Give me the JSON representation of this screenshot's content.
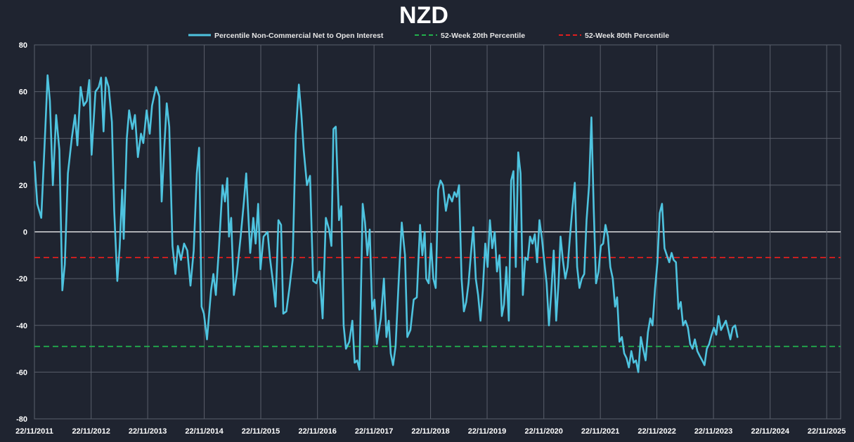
{
  "chart_data": {
    "type": "line",
    "title": "NZD",
    "xlabel": "",
    "ylabel": "",
    "ylim": [
      -80,
      80
    ],
    "yticks": [
      80,
      60,
      40,
      20,
      0,
      -20,
      -40,
      -60,
      -80
    ],
    "xticks": [
      "22/11/2011",
      "22/11/2012",
      "22/11/2013",
      "22/11/2014",
      "22/11/2015",
      "22/11/2016",
      "22/11/2017",
      "22/11/2018",
      "22/11/2019",
      "22/11/2020",
      "22/11/2021",
      "22/11/2022",
      "22/11/2023",
      "22/11/2024",
      "22/11/2025"
    ],
    "xlim": [
      "2011-11-22",
      "2026-02-20"
    ],
    "grid": true,
    "legend_position": "top",
    "colors": {
      "main": "#4ec3df",
      "p20": "#22b14c",
      "p80": "#e01e1e",
      "background": "#1f2430",
      "grid": "#5a5f6b",
      "zero": "#ffffff"
    },
    "series": [
      {
        "name": "Percentile Non-Commercial Net to Open Interest",
        "style": "solid",
        "points": [
          [
            "2011-11-22",
            30
          ],
          [
            "2011-12-10",
            12
          ],
          [
            "2012-01-05",
            6
          ],
          [
            "2012-02-01",
            45
          ],
          [
            "2012-02-15",
            67
          ],
          [
            "2012-03-01",
            56
          ],
          [
            "2012-03-20",
            20
          ],
          [
            "2012-04-10",
            50
          ],
          [
            "2012-05-01",
            35
          ],
          [
            "2012-05-20",
            -25
          ],
          [
            "2012-06-05",
            -14
          ],
          [
            "2012-06-25",
            25
          ],
          [
            "2012-07-20",
            40
          ],
          [
            "2012-08-10",
            50
          ],
          [
            "2012-08-25",
            37
          ],
          [
            "2012-09-15",
            62
          ],
          [
            "2012-10-05",
            54
          ],
          [
            "2012-10-25",
            56
          ],
          [
            "2012-11-10",
            65
          ],
          [
            "2012-11-25",
            33
          ],
          [
            "2012-12-20",
            60
          ],
          [
            "2013-01-10",
            62
          ],
          [
            "2013-01-25",
            66
          ],
          [
            "2013-02-10",
            43
          ],
          [
            "2013-02-25",
            66
          ],
          [
            "2013-03-15",
            62
          ],
          [
            "2013-04-05",
            47
          ],
          [
            "2013-04-20",
            9
          ],
          [
            "2013-05-10",
            -21
          ],
          [
            "2013-05-25",
            -7
          ],
          [
            "2013-06-10",
            18
          ],
          [
            "2013-06-20",
            -3
          ],
          [
            "2013-07-10",
            40
          ],
          [
            "2013-07-25",
            52
          ],
          [
            "2013-08-15",
            44
          ],
          [
            "2013-09-01",
            50
          ],
          [
            "2013-09-20",
            32
          ],
          [
            "2013-10-10",
            42
          ],
          [
            "2013-10-25",
            38
          ],
          [
            "2013-11-15",
            52
          ],
          [
            "2013-12-05",
            42
          ],
          [
            "2013-12-20",
            54
          ],
          [
            "2014-01-15",
            62
          ],
          [
            "2014-02-05",
            58
          ],
          [
            "2014-02-20",
            13
          ],
          [
            "2014-03-10",
            37
          ],
          [
            "2014-03-25",
            55
          ],
          [
            "2014-04-10",
            45
          ],
          [
            "2014-05-01",
            -6
          ],
          [
            "2014-05-20",
            -18
          ],
          [
            "2014-06-05",
            -6
          ],
          [
            "2014-06-25",
            -12
          ],
          [
            "2014-07-15",
            -5
          ],
          [
            "2014-08-05",
            -8
          ],
          [
            "2014-08-25",
            -23
          ],
          [
            "2014-09-15",
            -8
          ],
          [
            "2014-10-05",
            25
          ],
          [
            "2014-10-20",
            36
          ],
          [
            "2014-11-05",
            -32
          ],
          [
            "2014-11-20",
            -35
          ],
          [
            "2014-12-10",
            -46
          ],
          [
            "2015-01-05",
            -25
          ],
          [
            "2015-01-20",
            -18
          ],
          [
            "2015-02-05",
            -27
          ],
          [
            "2015-02-25",
            -7
          ],
          [
            "2015-03-20",
            20
          ],
          [
            "2015-04-05",
            13
          ],
          [
            "2015-04-20",
            23
          ],
          [
            "2015-05-01",
            -2
          ],
          [
            "2015-05-15",
            6
          ],
          [
            "2015-06-01",
            -27
          ],
          [
            "2015-06-20",
            -18
          ],
          [
            "2015-07-15",
            -2
          ],
          [
            "2015-08-05",
            13
          ],
          [
            "2015-08-20",
            25
          ],
          [
            "2015-09-15",
            -9
          ],
          [
            "2015-10-05",
            6
          ],
          [
            "2015-10-20",
            -5
          ],
          [
            "2015-11-05",
            12
          ],
          [
            "2015-11-20",
            -16
          ],
          [
            "2015-12-10",
            -2
          ],
          [
            "2016-01-05",
            0
          ],
          [
            "2016-01-20",
            -11
          ],
          [
            "2016-02-10",
            -22
          ],
          [
            "2016-02-25",
            -32
          ],
          [
            "2016-03-15",
            5
          ],
          [
            "2016-04-01",
            3
          ],
          [
            "2016-04-15",
            -35
          ],
          [
            "2016-05-05",
            -34
          ],
          [
            "2016-05-25",
            -24
          ],
          [
            "2016-06-15",
            -12
          ],
          [
            "2016-07-05",
            42
          ],
          [
            "2016-07-25",
            63
          ],
          [
            "2016-08-10",
            50
          ],
          [
            "2016-08-25",
            35
          ],
          [
            "2016-09-15",
            20
          ],
          [
            "2016-10-05",
            24
          ],
          [
            "2016-10-25",
            -21
          ],
          [
            "2016-11-15",
            -22
          ],
          [
            "2016-12-05",
            -17
          ],
          [
            "2016-12-25",
            -37
          ],
          [
            "2017-01-15",
            6
          ],
          [
            "2017-02-05",
            1
          ],
          [
            "2017-02-20",
            -6
          ],
          [
            "2017-03-05",
            44
          ],
          [
            "2017-03-20",
            45
          ],
          [
            "2017-04-10",
            5
          ],
          [
            "2017-04-25",
            11
          ],
          [
            "2017-05-10",
            -40
          ],
          [
            "2017-05-25",
            -50
          ],
          [
            "2017-06-15",
            -47
          ],
          [
            "2017-07-05",
            -38
          ],
          [
            "2017-07-20",
            -56
          ],
          [
            "2017-08-05",
            -55
          ],
          [
            "2017-08-20",
            -59
          ],
          [
            "2017-09-10",
            12
          ],
          [
            "2017-09-25",
            4
          ],
          [
            "2017-10-10",
            -10
          ],
          [
            "2017-10-25",
            1
          ],
          [
            "2017-11-10",
            -33
          ],
          [
            "2017-11-25",
            -29
          ],
          [
            "2017-12-10",
            -48
          ],
          [
            "2018-01-05",
            -37
          ],
          [
            "2018-01-25",
            -20
          ],
          [
            "2018-02-10",
            -45
          ],
          [
            "2018-02-25",
            -38
          ],
          [
            "2018-03-10",
            -52
          ],
          [
            "2018-03-25",
            -57
          ],
          [
            "2018-04-10",
            -49
          ],
          [
            "2018-05-01",
            -20
          ],
          [
            "2018-05-20",
            4
          ],
          [
            "2018-06-10",
            -10
          ],
          [
            "2018-06-25",
            -45
          ],
          [
            "2018-07-15",
            -42
          ],
          [
            "2018-08-05",
            -29
          ],
          [
            "2018-08-25",
            -28
          ],
          [
            "2018-09-15",
            3
          ],
          [
            "2018-09-30",
            -10
          ],
          [
            "2018-10-15",
            0
          ],
          [
            "2018-10-25",
            -20
          ],
          [
            "2018-11-10",
            -22
          ],
          [
            "2018-11-25",
            -5
          ],
          [
            "2018-12-10",
            -20
          ],
          [
            "2018-12-25",
            -24
          ],
          [
            "2019-01-10",
            18
          ],
          [
            "2019-01-25",
            22
          ],
          [
            "2019-02-10",
            20
          ],
          [
            "2019-03-01",
            9
          ],
          [
            "2019-03-20",
            16
          ],
          [
            "2019-04-10",
            13
          ],
          [
            "2019-04-25",
            17
          ],
          [
            "2019-05-10",
            15
          ],
          [
            "2019-05-25",
            20
          ],
          [
            "2019-06-10",
            -20
          ],
          [
            "2019-06-25",
            -34
          ],
          [
            "2019-07-10",
            -30
          ],
          [
            "2019-07-25",
            -22
          ],
          [
            "2019-08-10",
            -9
          ],
          [
            "2019-08-25",
            2
          ],
          [
            "2019-09-10",
            -20
          ],
          [
            "2019-09-25",
            -27
          ],
          [
            "2019-10-10",
            -38
          ],
          [
            "2019-10-25",
            -25
          ],
          [
            "2019-11-10",
            -5
          ],
          [
            "2019-11-25",
            -15
          ],
          [
            "2019-12-10",
            5
          ],
          [
            "2019-12-25",
            -7
          ],
          [
            "2020-01-10",
            0
          ],
          [
            "2020-01-25",
            -17
          ],
          [
            "2020-02-10",
            -10
          ],
          [
            "2020-02-25",
            -36
          ],
          [
            "2020-03-10",
            -31
          ],
          [
            "2020-03-25",
            -15
          ],
          [
            "2020-04-10",
            -38
          ],
          [
            "2020-04-25",
            22
          ],
          [
            "2020-05-10",
            26
          ],
          [
            "2020-05-25",
            -15
          ],
          [
            "2020-06-10",
            34
          ],
          [
            "2020-06-25",
            25
          ],
          [
            "2020-07-10",
            -27
          ],
          [
            "2020-07-25",
            -11
          ],
          [
            "2020-08-10",
            -12
          ],
          [
            "2020-08-25",
            -2
          ],
          [
            "2020-09-10",
            -5
          ],
          [
            "2020-09-25",
            -1
          ],
          [
            "2020-10-10",
            -13
          ],
          [
            "2020-10-25",
            5
          ],
          [
            "2020-11-10",
            -3
          ],
          [
            "2020-11-25",
            -13
          ],
          [
            "2020-12-10",
            -22
          ],
          [
            "2020-12-25",
            -40
          ],
          [
            "2021-01-10",
            -25
          ],
          [
            "2021-01-25",
            -8
          ],
          [
            "2021-02-10",
            -38
          ],
          [
            "2021-02-25",
            -22
          ],
          [
            "2021-03-10",
            -2
          ],
          [
            "2021-03-25",
            -12
          ],
          [
            "2021-04-10",
            -20
          ],
          [
            "2021-04-25",
            -15
          ],
          [
            "2021-05-10",
            -2
          ],
          [
            "2021-05-25",
            10
          ],
          [
            "2021-06-10",
            21
          ],
          [
            "2021-06-25",
            -15
          ],
          [
            "2021-07-10",
            -24
          ],
          [
            "2021-07-25",
            -20
          ],
          [
            "2021-08-10",
            -18
          ],
          [
            "2021-08-25",
            5
          ],
          [
            "2021-09-10",
            20
          ],
          [
            "2021-09-25",
            49
          ],
          [
            "2021-10-10",
            10
          ],
          [
            "2021-10-25",
            -22
          ],
          [
            "2021-11-10",
            -17
          ],
          [
            "2021-11-25",
            -6
          ],
          [
            "2021-12-10",
            -5
          ],
          [
            "2021-12-25",
            3
          ],
          [
            "2022-01-10",
            -2
          ],
          [
            "2022-01-25",
            -15
          ],
          [
            "2022-02-10",
            -20
          ],
          [
            "2022-02-25",
            -32
          ],
          [
            "2022-03-10",
            -28
          ],
          [
            "2022-03-25",
            -47
          ],
          [
            "2022-04-10",
            -45
          ],
          [
            "2022-04-25",
            -52
          ],
          [
            "2022-05-10",
            -54
          ],
          [
            "2022-05-25",
            -58
          ],
          [
            "2022-06-10",
            -51
          ],
          [
            "2022-06-25",
            -56
          ],
          [
            "2022-07-10",
            -55
          ],
          [
            "2022-07-25",
            -60
          ],
          [
            "2022-08-10",
            -45
          ],
          [
            "2022-08-25",
            -50
          ],
          [
            "2022-09-10",
            -55
          ],
          [
            "2022-09-25",
            -43
          ],
          [
            "2022-10-10",
            -37
          ],
          [
            "2022-10-25",
            -40
          ],
          [
            "2022-11-10",
            -24
          ],
          [
            "2022-11-25",
            -13
          ],
          [
            "2022-12-10",
            8
          ],
          [
            "2022-12-25",
            12
          ],
          [
            "2023-01-10",
            -7
          ],
          [
            "2023-01-25",
            -10
          ],
          [
            "2023-02-10",
            -13
          ],
          [
            "2023-02-25",
            -9
          ],
          [
            "2023-03-10",
            -12
          ],
          [
            "2023-03-25",
            -13
          ],
          [
            "2023-04-10",
            -33
          ],
          [
            "2023-04-25",
            -30
          ],
          [
            "2023-05-10",
            -40
          ],
          [
            "2023-05-25",
            -38
          ],
          [
            "2023-06-10",
            -41
          ],
          [
            "2023-06-25",
            -48
          ],
          [
            "2023-07-10",
            -50
          ],
          [
            "2023-07-25",
            -46
          ],
          [
            "2023-08-10",
            -51
          ],
          [
            "2023-08-25",
            -53
          ],
          [
            "2023-09-10",
            -55
          ],
          [
            "2023-09-25",
            -57
          ],
          [
            "2023-10-10",
            -50
          ],
          [
            "2023-10-25",
            -48
          ],
          [
            "2023-11-10",
            -44
          ],
          [
            "2023-11-25",
            -41
          ],
          [
            "2023-12-10",
            -44
          ],
          [
            "2023-12-25",
            -36
          ],
          [
            "2024-01-10",
            -42
          ],
          [
            "2024-01-25",
            -40
          ],
          [
            "2024-02-10",
            -38
          ],
          [
            "2024-02-25",
            -42
          ],
          [
            "2024-03-10",
            -46
          ],
          [
            "2024-03-25",
            -41
          ],
          [
            "2024-04-10",
            -40
          ],
          [
            "2024-04-25",
            -45
          ]
        ]
      },
      {
        "name": "52-Week 20th Percentile",
        "style": "dashed",
        "value": -49
      },
      {
        "name": "52-Week 80th Percentile",
        "style": "dashed",
        "value": -11
      }
    ]
  }
}
